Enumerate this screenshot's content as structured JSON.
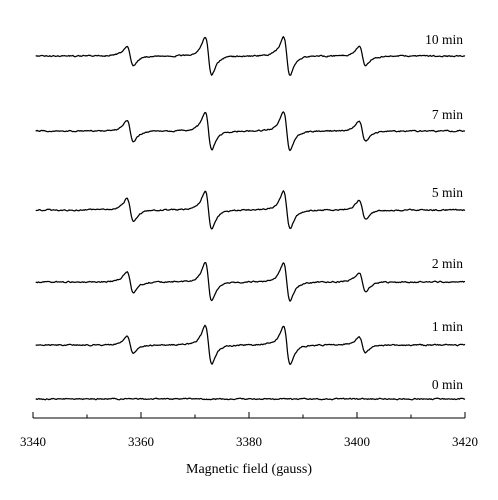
{
  "chart_data": {
    "type": "line",
    "xlabel": "Magnetic field (gauss)",
    "ylabel": "",
    "xlim": [
      3340,
      3420
    ],
    "x_ticks": [
      3340,
      3360,
      3380,
      3400,
      3420
    ],
    "grid": false,
    "line_color": "#000000",
    "peak_centers": [
      3358,
      3372.5,
      3387,
      3401
    ],
    "series": [
      {
        "name": "10 min",
        "relative_amplitudes": [
          0.5,
          1.0,
          1.0,
          0.5
        ]
      },
      {
        "name": "7 min",
        "relative_amplitudes": [
          0.55,
          1.0,
          1.0,
          0.52
        ]
      },
      {
        "name": "5 min",
        "relative_amplitudes": [
          0.6,
          1.0,
          0.97,
          0.5
        ]
      },
      {
        "name": "2 min",
        "relative_amplitudes": [
          0.55,
          1.0,
          1.0,
          0.5
        ]
      },
      {
        "name": "1 min",
        "relative_amplitudes": [
          0.45,
          1.0,
          1.0,
          0.4
        ]
      },
      {
        "name": "0 min",
        "relative_amplitudes": [
          0,
          0,
          0,
          0
        ]
      }
    ]
  }
}
